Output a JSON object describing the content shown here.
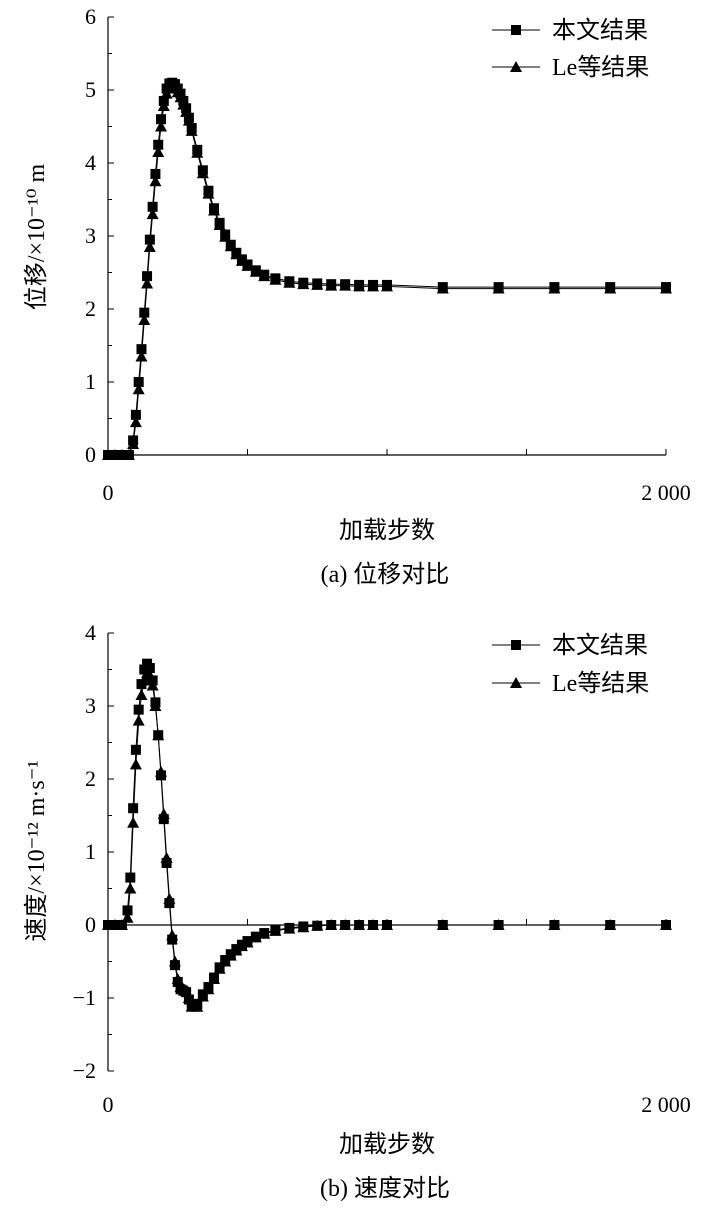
{
  "chart_data": [
    {
      "type": "line",
      "caption": "(a) 位移对比",
      "xlabel": "加载步数",
      "ylabel": "位移/×10⁻¹⁰ m",
      "xlim": [
        0,
        2000
      ],
      "ylim": [
        0,
        6
      ],
      "x_ticks": [
        "0",
        "2 000"
      ],
      "y_ticks": [
        "0",
        "1",
        "2",
        "3",
        "4",
        "5",
        "6"
      ],
      "legend_position": "top-right",
      "series": [
        {
          "name": "本文结果",
          "marker": "square",
          "x": [
            0,
            25,
            50,
            75,
            90,
            100,
            110,
            120,
            130,
            140,
            150,
            160,
            170,
            180,
            190,
            200,
            210,
            220,
            230,
            240,
            250,
            260,
            270,
            280,
            290,
            300,
            320,
            340,
            360,
            380,
            400,
            420,
            440,
            460,
            480,
            500,
            530,
            560,
            600,
            650,
            700,
            750,
            800,
            850,
            900,
            950,
            1000,
            1200,
            1400,
            1600,
            1800,
            2000
          ],
          "y": [
            0.0,
            0.0,
            0.0,
            0.0,
            0.2,
            0.55,
            1.0,
            1.45,
            1.95,
            2.45,
            2.95,
            3.4,
            3.85,
            4.25,
            4.6,
            4.85,
            5.02,
            5.09,
            5.1,
            5.08,
            5.02,
            4.95,
            4.85,
            4.75,
            4.62,
            4.48,
            4.18,
            3.9,
            3.62,
            3.38,
            3.18,
            3.02,
            2.88,
            2.77,
            2.68,
            2.61,
            2.53,
            2.47,
            2.42,
            2.38,
            2.36,
            2.35,
            2.34,
            2.34,
            2.33,
            2.33,
            2.33,
            2.3,
            2.3,
            2.3,
            2.3,
            2.3
          ]
        },
        {
          "name": "Le等结果",
          "marker": "triangle",
          "x": [
            0,
            25,
            50,
            75,
            90,
            100,
            110,
            120,
            130,
            140,
            150,
            160,
            170,
            180,
            190,
            200,
            210,
            220,
            230,
            240,
            250,
            260,
            270,
            280,
            290,
            300,
            320,
            340,
            360,
            380,
            400,
            420,
            440,
            460,
            480,
            500,
            530,
            560,
            600,
            650,
            700,
            750,
            800,
            850,
            900,
            950,
            1000,
            1200,
            1400,
            1600,
            1800,
            2000
          ],
          "y": [
            0.0,
            0.0,
            0.0,
            0.0,
            0.15,
            0.45,
            0.9,
            1.35,
            1.85,
            2.35,
            2.85,
            3.3,
            3.75,
            4.15,
            4.5,
            4.78,
            4.95,
            5.02,
            5.04,
            5.02,
            4.97,
            4.9,
            4.8,
            4.7,
            4.58,
            4.44,
            4.14,
            3.86,
            3.58,
            3.35,
            3.15,
            2.99,
            2.86,
            2.75,
            2.66,
            2.59,
            2.51,
            2.45,
            2.4,
            2.36,
            2.34,
            2.33,
            2.32,
            2.32,
            2.31,
            2.31,
            2.31,
            2.28,
            2.28,
            2.28,
            2.28,
            2.28
          ]
        }
      ]
    },
    {
      "type": "line",
      "caption": "(b) 速度对比",
      "xlabel": "加载步数",
      "ylabel": "速度/×10⁻¹² m·s⁻¹",
      "xlim": [
        0,
        2000
      ],
      "ylim": [
        -2,
        4
      ],
      "x_ticks": [
        "0",
        "2 000"
      ],
      "y_ticks": [
        "−2",
        "−1",
        "0",
        "1",
        "2",
        "3",
        "4"
      ],
      "legend_position": "top-right",
      "series": [
        {
          "name": "本文结果",
          "marker": "square",
          "x": [
            0,
            25,
            50,
            70,
            80,
            90,
            100,
            110,
            120,
            130,
            140,
            150,
            160,
            170,
            180,
            190,
            200,
            210,
            220,
            230,
            240,
            250,
            260,
            270,
            280,
            290,
            300,
            320,
            340,
            360,
            380,
            400,
            420,
            440,
            460,
            480,
            500,
            530,
            560,
            600,
            650,
            700,
            750,
            800,
            850,
            900,
            950,
            1000,
            1200,
            1400,
            1600,
            1800,
            2000
          ],
          "y": [
            0.0,
            0.0,
            0.0,
            0.2,
            0.65,
            1.6,
            2.4,
            2.95,
            3.3,
            3.5,
            3.58,
            3.52,
            3.35,
            3.05,
            2.6,
            2.05,
            1.45,
            0.85,
            0.3,
            -0.2,
            -0.55,
            -0.78,
            -0.88,
            -0.9,
            -0.92,
            -1.02,
            -1.1,
            -1.08,
            -0.95,
            -0.85,
            -0.72,
            -0.58,
            -0.48,
            -0.4,
            -0.33,
            -0.27,
            -0.22,
            -0.16,
            -0.11,
            -0.07,
            -0.04,
            -0.02,
            -0.01,
            0.0,
            0.0,
            0.0,
            0.0,
            0.0,
            0.0,
            0.0,
            0.0,
            0.0,
            0.0
          ]
        },
        {
          "name": "Le等结果",
          "marker": "triangle",
          "x": [
            0,
            25,
            50,
            70,
            80,
            90,
            100,
            110,
            120,
            130,
            140,
            150,
            160,
            170,
            180,
            190,
            200,
            210,
            220,
            230,
            240,
            250,
            260,
            270,
            280,
            290,
            300,
            320,
            340,
            360,
            380,
            400,
            420,
            440,
            460,
            480,
            500,
            530,
            560,
            600,
            650,
            700,
            750,
            800,
            850,
            900,
            950,
            1000,
            1200,
            1400,
            1600,
            1800,
            2000
          ],
          "y": [
            0.0,
            0.0,
            0.0,
            0.1,
            0.5,
            1.4,
            2.2,
            2.8,
            3.15,
            3.35,
            3.45,
            3.42,
            3.28,
            3.0,
            2.6,
            2.1,
            1.52,
            0.92,
            0.36,
            -0.14,
            -0.5,
            -0.74,
            -0.85,
            -0.88,
            -0.9,
            -1.0,
            -1.12,
            -1.12,
            -0.98,
            -0.88,
            -0.74,
            -0.6,
            -0.5,
            -0.42,
            -0.35,
            -0.29,
            -0.24,
            -0.17,
            -0.12,
            -0.08,
            -0.05,
            -0.03,
            -0.01,
            0.0,
            0.0,
            0.0,
            0.0,
            0.0,
            0.0,
            0.0,
            0.0,
            0.0,
            0.0
          ]
        }
      ]
    }
  ]
}
